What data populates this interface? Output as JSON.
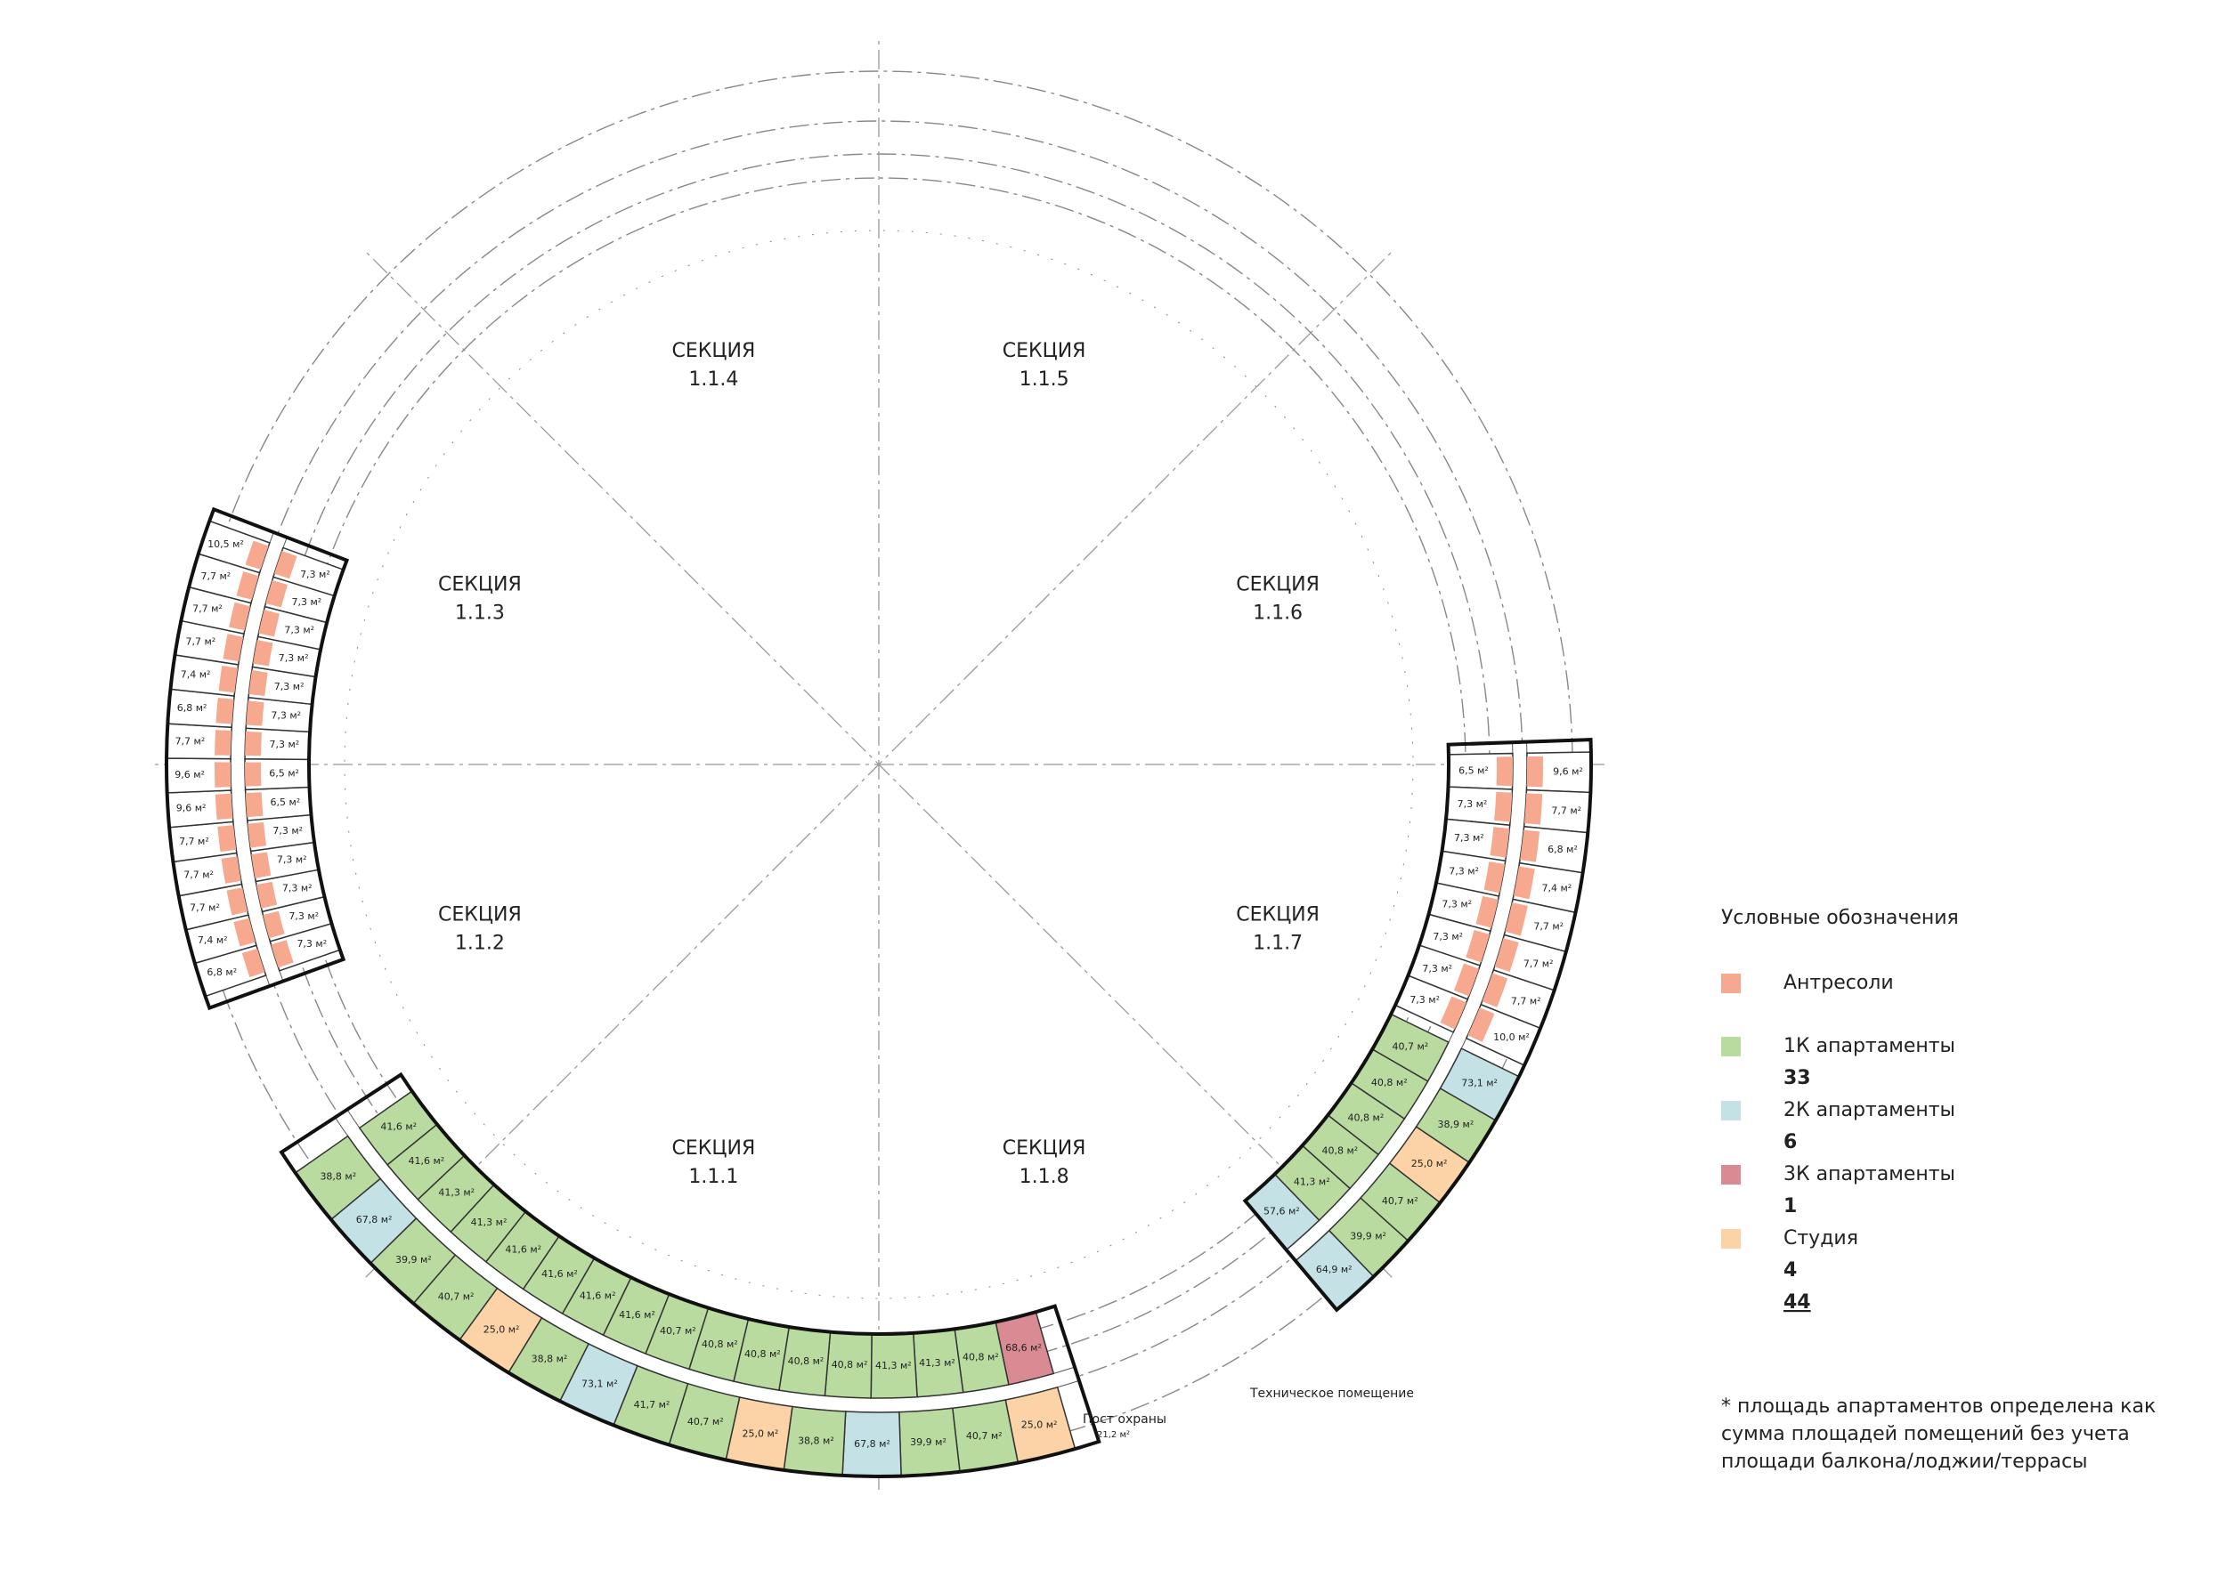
{
  "sections": [
    {
      "title": "СЕКЦИЯ",
      "number": "1.1.1"
    },
    {
      "title": "СЕКЦИЯ",
      "number": "1.1.2"
    },
    {
      "title": "СЕКЦИЯ",
      "number": "1.1.3"
    },
    {
      "title": "СЕКЦИЯ",
      "number": "1.1.4"
    },
    {
      "title": "СЕКЦИЯ",
      "number": "1.1.5"
    },
    {
      "title": "СЕКЦИЯ",
      "number": "1.1.6"
    },
    {
      "title": "СЕКЦИЯ",
      "number": "1.1.7"
    },
    {
      "title": "СЕКЦИЯ",
      "number": "1.1.8"
    }
  ],
  "lower_wing": {
    "inner": [
      {
        "label": "68,6 м²",
        "color": "#d98a92"
      },
      {
        "label": "40,8 м²",
        "color": "#b9dba0"
      },
      {
        "label": "41,3 м²",
        "color": "#b9dba0"
      },
      {
        "label": "41,3 м²",
        "color": "#b9dba0"
      },
      {
        "label": "40,8 м²",
        "color": "#b9dba0"
      },
      {
        "label": "40,8 м²",
        "color": "#b9dba0"
      },
      {
        "label": "40,8 м²",
        "color": "#b9dba0"
      },
      {
        "label": "40,8 м²",
        "color": "#b9dba0"
      },
      {
        "label": "40,7 м²",
        "color": "#b9dba0"
      },
      {
        "label": "41,6 м²",
        "color": "#b9dba0"
      },
      {
        "label": "41,6 м²",
        "color": "#b9dba0"
      },
      {
        "label": "41,6 м²",
        "color": "#b9dba0"
      },
      {
        "label": "41,6 м²",
        "color": "#b9dba0"
      },
      {
        "label": "41,3 м²",
        "color": "#b9dba0"
      },
      {
        "label": "41,3 м²",
        "color": "#b9dba0"
      },
      {
        "label": "41,6 м²",
        "color": "#b9dba0"
      },
      {
        "label": "41,6 м²",
        "color": "#b9dba0"
      }
    ],
    "outer": [
      {
        "label": "25,0 м²",
        "color": "#fcd3a6"
      },
      {
        "label": "40,7 м²",
        "color": "#b9dba0"
      },
      {
        "label": "39,9 м²",
        "color": "#b9dba0"
      },
      {
        "label": "67,8 м²",
        "color": "#c4e2e6"
      },
      {
        "label": "38,8 м²",
        "color": "#b9dba0"
      },
      {
        "label": "25,0 м²",
        "color": "#fcd3a6"
      },
      {
        "label": "40,7 м²",
        "color": "#b9dba0"
      },
      {
        "label": "41,7 м²",
        "color": "#b9dba0"
      },
      {
        "label": "73,1 м²",
        "color": "#c4e2e6"
      },
      {
        "label": "38,8 м²",
        "color": "#b9dba0"
      },
      {
        "label": "25,0 м²",
        "color": "#fcd3a6"
      },
      {
        "label": "40,7 м²",
        "color": "#b9dba0"
      },
      {
        "label": "39,9 м²",
        "color": "#b9dba0"
      },
      {
        "label": "67,8 м²",
        "color": "#c4e2e6"
      },
      {
        "label": "38,8 м²",
        "color": "#b9dba0"
      }
    ]
  },
  "right_wing": {
    "inner": [
      {
        "label": "40,7 м²",
        "color": "#b9dba0"
      },
      {
        "label": "40,8 м²",
        "color": "#b9dba0"
      },
      {
        "label": "40,8 м²",
        "color": "#b9dba0"
      },
      {
        "label": "40,8 м²",
        "color": "#b9dba0"
      },
      {
        "label": "41,3 м²",
        "color": "#b9dba0"
      },
      {
        "label": "57,6 м²",
        "color": "#c4e2e6"
      }
    ],
    "outer": [
      {
        "label": "73,1 м²",
        "color": "#c4e2e6"
      },
      {
        "label": "38,9 м²",
        "color": "#b9dba0"
      },
      {
        "label": "25,0 м²",
        "color": "#fcd3a6"
      },
      {
        "label": "40,7 м²",
        "color": "#b9dba0"
      },
      {
        "label": "39,9 м²",
        "color": "#b9dba0"
      },
      {
        "label": "64,9 м²",
        "color": "#c4e2e6"
      }
    ],
    "mezz_inner": [
      "6,5 м²",
      "7,3 м²",
      "7,3 м²",
      "7,3 м²",
      "7,3 м²",
      "7,3 м²",
      "7,3 м²",
      "7,3 м²"
    ],
    "mezz_outer": [
      "9,6 м²",
      "7,7 м²",
      "6,8 м²",
      "7,4 м²",
      "7,7 м²",
      "7,7 м²",
      "7,7 м²",
      "10,0 м²"
    ]
  },
  "left_wing": {
    "mezz_inner": [
      "7,3 м²",
      "7,3 м²",
      "7,3 м²",
      "7,3 м²",
      "7,3 м²",
      "6,5 м²",
      "6,5 м²",
      "7,3 м²",
      "7,3 м²",
      "7,3 м²",
      "7,3 м²",
      "7,3 м²",
      "7,3 м²",
      "7,3 м²"
    ],
    "mezz_outer": [
      "6,8 м²",
      "7,4 м²",
      "7,7 м²",
      "7,7 м²",
      "7,7 м²",
      "9,6 м²",
      "9,6 м²",
      "7,7 м²",
      "6,8 м²",
      "7,4 м²",
      "7,7 м²",
      "7,7 м²",
      "7,7 м²",
      "10,5 м²"
    ]
  },
  "mezz_color": "#f6a98f",
  "annotations": {
    "guard": "Пост охраны",
    "guard_area": "21,2 м²",
    "technical": "Техническое помещение"
  },
  "legend": {
    "title": "Условные обозначения",
    "items": [
      {
        "label": "Антресоли",
        "color": "#f6a98f"
      },
      {
        "label": "1К апартаменты",
        "color": "#b9dba0",
        "count": "33"
      },
      {
        "label": "2К апартаменты",
        "color": "#c4e2e6",
        "count": "6"
      },
      {
        "label": "3К апартаменты",
        "color": "#d98a92",
        "count": "1"
      },
      {
        "label": "Студия",
        "color": "#fcd3a6",
        "count": "4"
      }
    ],
    "total": "44"
  },
  "note": [
    "* площадь апартаментов определена как",
    "сумма площадей помещений без учета",
    "площади балкона/лоджии/террасы"
  ]
}
